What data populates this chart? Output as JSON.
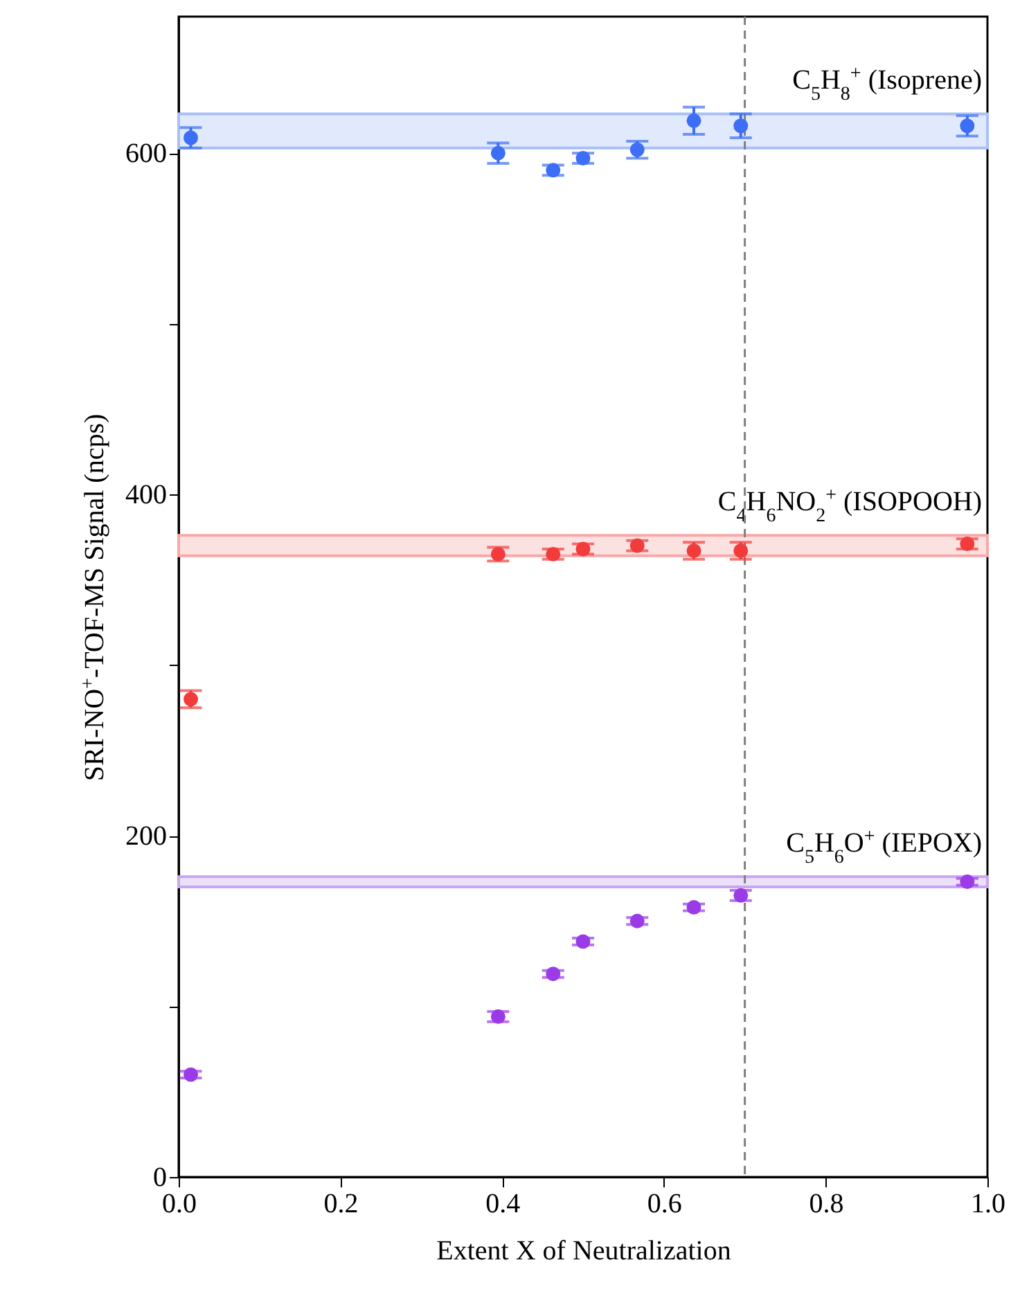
{
  "chart_data": {
    "type": "scatter",
    "xlabel": "Extent X of Neutralization",
    "ylabel": "SRI-NO$^{+}$-TOF-MS Signal (ncps)",
    "xlim": [
      0,
      1
    ],
    "xticks": [
      {
        "value": 0,
        "label": "0.0"
      },
      0.2,
      0.4,
      0.6,
      0.8,
      {
        "value": 1,
        "label": "1.0"
      }
    ],
    "ylim": [
      0,
      680
    ],
    "yticks": [
      0,
      {
        "value": 100,
        "label": null
      },
      200,
      {
        "value": 300,
        "label": null
      },
      400,
      {
        "value": 500,
        "label": null
      },
      600
    ],
    "grid": false,
    "marker": "circle",
    "series": [
      {
        "color": "#3d6ef5",
        "x": [
          0.015,
          0.395,
          0.463,
          0.5,
          0.567,
          0.637,
          0.695,
          0.975
        ],
        "values": [
          609,
          600,
          590,
          597,
          602,
          619,
          616,
          616
        ],
        "errors": [
          6,
          6,
          3,
          3,
          5,
          8,
          7,
          6
        ]
      },
      {
        "color": "#f23c3c",
        "x": [
          0.015,
          0.395,
          0.463,
          0.5,
          0.567,
          0.637,
          0.695,
          0.975
        ],
        "values": [
          280,
          365,
          365,
          368,
          370,
          367,
          367,
          371
        ],
        "errors": [
          5,
          4,
          3,
          3,
          3,
          5,
          5,
          3
        ]
      },
      {
        "color": "#9b3be8",
        "x": [
          0.015,
          0.395,
          0.463,
          0.5,
          0.567,
          0.637,
          0.695,
          0.975
        ],
        "values": [
          60,
          94,
          119,
          138,
          150,
          158,
          165,
          173
        ],
        "errors": [
          2,
          3,
          2,
          2,
          2,
          2,
          3,
          2
        ]
      }
    ],
    "bands": [
      {
        "axis": "y",
        "from": 603,
        "to": 623,
        "label": "C$_{5}$H$_{8}$$^{+}$ (Isoprene)",
        "color": "#a9bff7"
      },
      {
        "axis": "y",
        "from": 364,
        "to": 376,
        "label": "C$_{4}$H$_{6}$NO$_{2}$$^{+}$ (ISOPOOH)",
        "color": "#f7a9a9"
      },
      {
        "axis": "y",
        "from": 170,
        "to": 176,
        "label": "C$_{5}$H$_{6}$O$^{+}$ (IEPOX)",
        "color": "#c9a5f2"
      }
    ],
    "ref_lines": [
      {
        "axis": "x",
        "value": 0.7,
        "color": "#808080",
        "line_style": "dashed"
      }
    ]
  }
}
